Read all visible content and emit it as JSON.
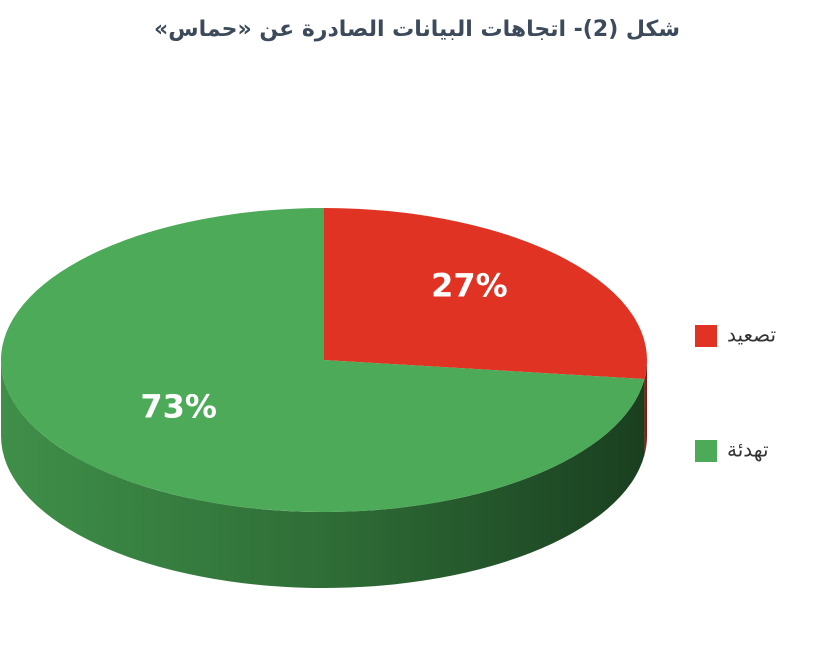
{
  "chart_data": {
    "type": "pie3d",
    "title": "شكل (2)- اتجاهات البيانات الصادرة عن «حماس»",
    "categories": [
      "تصعيد",
      "تهدئة"
    ],
    "values": [
      27,
      73
    ],
    "value_labels": [
      "27%",
      "73%"
    ],
    "colors": [
      "#e03324",
      "#4caa58"
    ],
    "legend": "right"
  }
}
